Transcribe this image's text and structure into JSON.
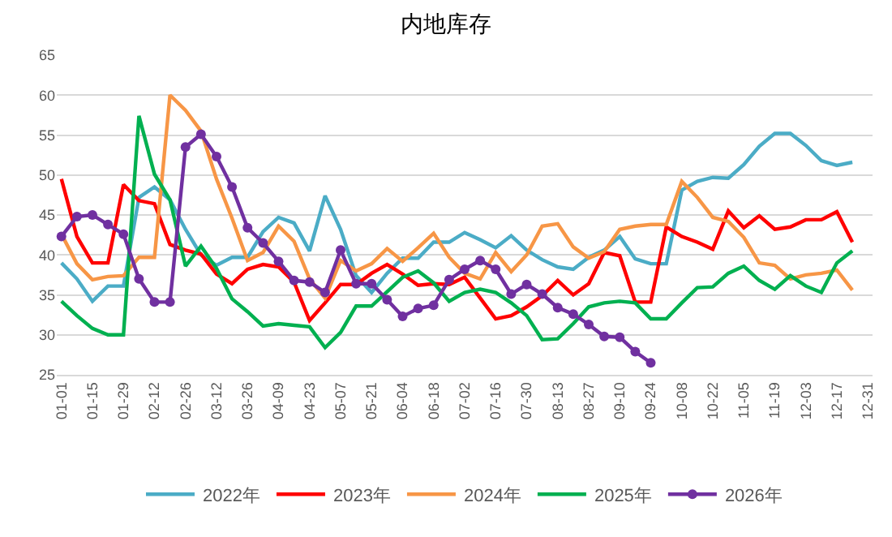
{
  "chart_data": {
    "type": "line",
    "title": "内地库存",
    "categories": [
      "01-01",
      null,
      "01-15",
      null,
      "01-29",
      null,
      "02-12",
      null,
      "02-26",
      null,
      "03-12",
      null,
      "03-26",
      null,
      "04-09",
      null,
      "04-23",
      null,
      "05-07",
      null,
      "05-21",
      null,
      "06-04",
      null,
      "06-18",
      null,
      "07-02",
      null,
      "07-16",
      null,
      "07-30",
      null,
      "08-13",
      null,
      "08-27",
      null,
      "09-10",
      null,
      "09-24",
      null,
      "10-08",
      null,
      "10-22",
      null,
      "11-05",
      null,
      "11-19",
      null,
      "12-03",
      null,
      "12-17",
      null,
      "12-31"
    ],
    "series": [
      {
        "name": "2022年",
        "color": "#4bacc6",
        "values": [
          39.0,
          37.0,
          34.2,
          36.1,
          36.1,
          47.2,
          48.5,
          46.9,
          43.2,
          40.0,
          38.7,
          39.7,
          39.7,
          42.9,
          44.7,
          44.0,
          40.5,
          47.4,
          43.2,
          37.4,
          35.3,
          37.7,
          39.6,
          39.6,
          41.6,
          41.6,
          42.8,
          41.9,
          40.9,
          42.4,
          40.6,
          39.4,
          38.5,
          38.2,
          39.7,
          40.6,
          42.3,
          39.5,
          38.9,
          38.9,
          48.1,
          49.2,
          49.7,
          49.6,
          51.3,
          53.6,
          55.2,
          55.2,
          53.7,
          51.8,
          51.2,
          51.6,
          null
        ]
      },
      {
        "name": "2023年",
        "color": "#ff0000",
        "values": [
          49.5,
          42.3,
          39.0,
          39.0,
          48.8,
          46.8,
          46.4,
          41.3,
          40.6,
          40.1,
          37.6,
          36.4,
          38.2,
          38.8,
          38.5,
          36.6,
          31.8,
          34.0,
          36.3,
          36.3,
          37.7,
          38.8,
          37.6,
          36.2,
          36.4,
          36.3,
          37.2,
          34.6,
          32.0,
          32.4,
          33.5,
          34.9,
          36.8,
          35.0,
          36.4,
          40.3,
          39.9,
          34.1,
          34.1,
          43.5,
          42.3,
          41.6,
          40.7,
          45.5,
          43.4,
          44.9,
          43.2,
          43.5,
          44.4,
          44.4,
          45.4,
          41.6,
          null
        ]
      },
      {
        "name": "2024年",
        "color": "#f79646",
        "values": [
          42.6,
          38.9,
          36.9,
          37.3,
          37.4,
          39.7,
          39.7,
          60.0,
          58.1,
          55.5,
          49.5,
          44.6,
          39.3,
          40.3,
          43.6,
          41.7,
          37.0,
          34.6,
          39.3,
          38.0,
          38.9,
          40.8,
          39.2,
          40.9,
          42.7,
          39.7,
          37.7,
          37.0,
          40.3,
          37.9,
          40.0,
          43.6,
          43.9,
          41.0,
          39.6,
          40.4,
          43.2,
          43.6,
          43.8,
          43.8,
          49.2,
          47.2,
          44.7,
          44.2,
          42.2,
          39.0,
          38.7,
          37.0,
          37.5,
          37.7,
          38.1,
          35.6,
          null
        ]
      },
      {
        "name": "2025年",
        "color": "#00b050",
        "values": [
          34.2,
          32.4,
          30.8,
          30.0,
          30.0,
          57.4,
          50.1,
          46.9,
          38.6,
          41.1,
          38.3,
          34.5,
          32.9,
          31.1,
          31.4,
          31.2,
          31.0,
          28.4,
          30.3,
          33.6,
          33.6,
          35.4,
          37.2,
          38.0,
          36.5,
          34.2,
          35.3,
          35.7,
          35.3,
          34.0,
          32.4,
          29.4,
          29.5,
          31.4,
          33.5,
          34.0,
          34.2,
          34.0,
          32.0,
          32.0,
          34.0,
          35.9,
          36.0,
          37.7,
          38.6,
          36.8,
          35.7,
          37.4,
          36.1,
          35.3,
          39.0,
          40.5,
          null
        ]
      },
      {
        "name": "2026年",
        "color": "#7030a0",
        "marker": "circle",
        "values": [
          42.3,
          44.8,
          45.0,
          43.8,
          42.6,
          37.0,
          34.1,
          34.1,
          53.5,
          55.1,
          52.3,
          48.5,
          43.4,
          41.5,
          39.2,
          36.8,
          36.6,
          35.3,
          40.6,
          36.4,
          36.4,
          34.4,
          32.3,
          33.3,
          33.7,
          36.9,
          38.2,
          39.3,
          38.2,
          35.1,
          36.3,
          35.1,
          33.4,
          32.6,
          31.3,
          29.8,
          29.7,
          27.9,
          26.5,
          null,
          null,
          null,
          null,
          null,
          null,
          null,
          null,
          null,
          null,
          null,
          null,
          null,
          null
        ]
      }
    ],
    "ylim": [
      25,
      65
    ],
    "yticks": [
      25,
      30,
      35,
      40,
      45,
      50,
      55,
      60,
      65
    ],
    "grid": "y",
    "legend": "bottom",
    "line_style": "solid"
  }
}
